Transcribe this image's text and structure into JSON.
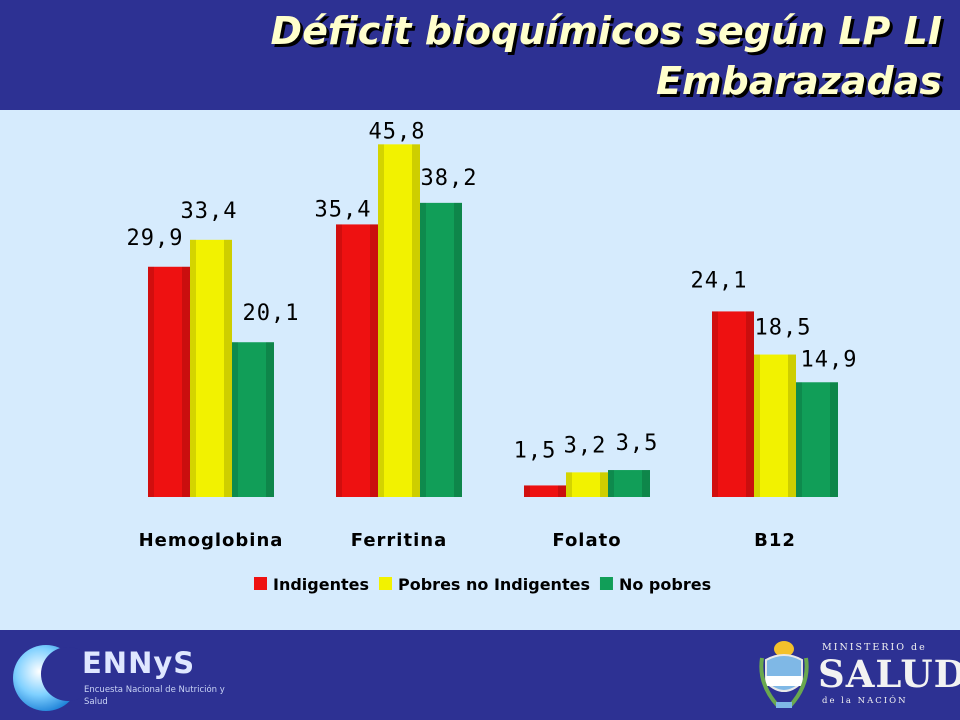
{
  "title": {
    "line1": "Déficit bioquímicos según LP LI",
    "line2": "Embarazadas"
  },
  "chart_data": {
    "type": "bar",
    "categories": [
      "Hemoglobina",
      "Ferritina",
      "Folato",
      "B12"
    ],
    "series": [
      {
        "name": "Indigentes",
        "values": [
          29.9,
          35.4,
          1.5,
          24.1
        ],
        "labels": [
          "29,9",
          "35,4",
          "1,5",
          "24,1"
        ],
        "color": "#ee1111"
      },
      {
        "name": "Pobres no Indigentes",
        "values": [
          33.4,
          45.8,
          3.2,
          18.5
        ],
        "labels": [
          "33,4",
          "45,8",
          "3,2",
          "18,5"
        ],
        "color": "#f2f200"
      },
      {
        "name": "No pobres",
        "values": [
          20.1,
          38.2,
          3.5,
          14.9
        ],
        "labels": [
          "20,1",
          "38,2",
          "3,5",
          "14,9"
        ],
        "color": "#119e58"
      }
    ],
    "ylim": [
      0,
      50
    ],
    "grid": false,
    "legend": "bottom",
    "xlabel": "",
    "ylabel": ""
  },
  "logos": {
    "ennys": {
      "name": "ENNyS",
      "subtitle": "Encuesta Nacional de Nutrición y Salud"
    },
    "ministerio": {
      "top": "MINISTERIO de",
      "main": "SALUD",
      "bottom": "de la NACIÓN"
    }
  }
}
